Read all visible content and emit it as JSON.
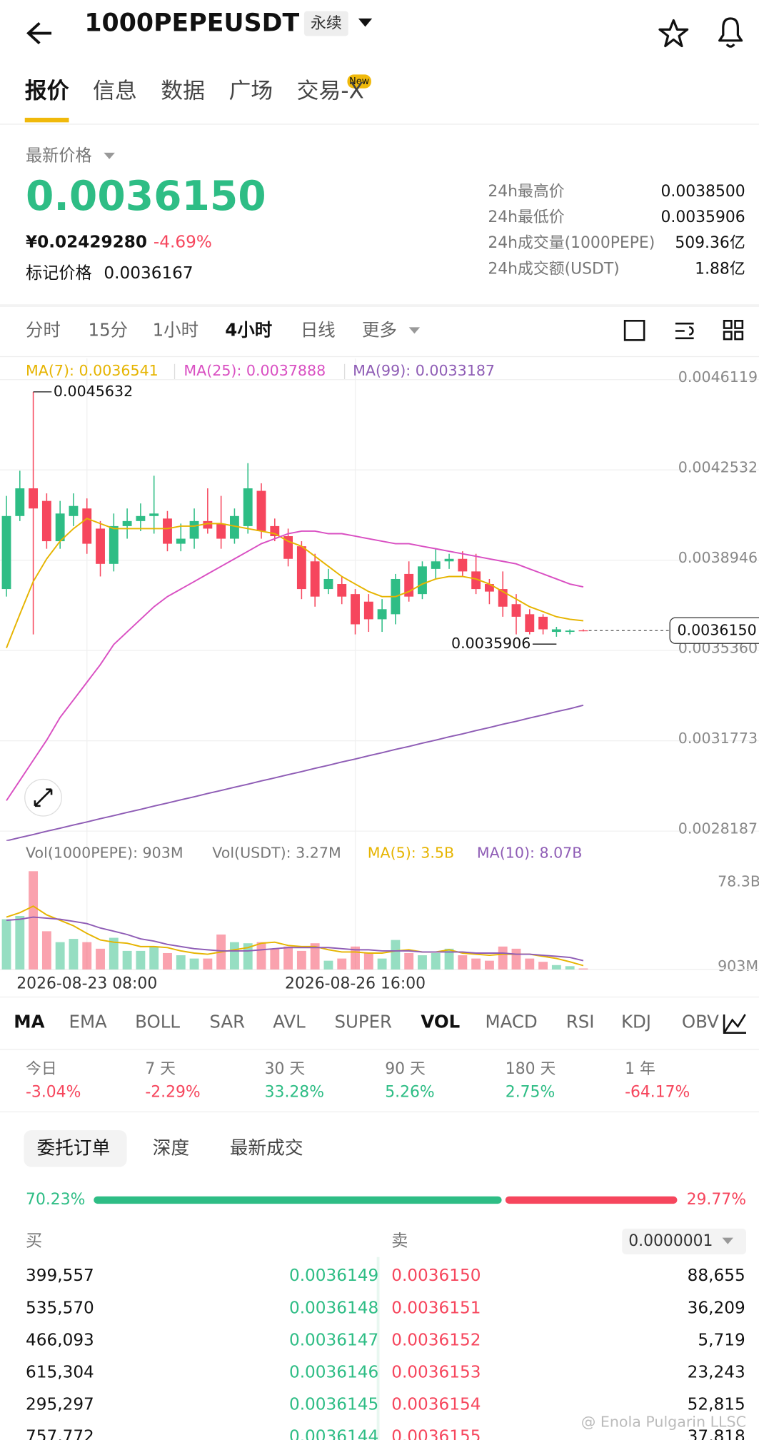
{
  "header": {
    "symbol": "1000PEPEUSDT",
    "contract_type": "永续"
  },
  "tabs": {
    "items": [
      "报价",
      "信息",
      "数据",
      "广场",
      "交易-X"
    ],
    "badge": "New"
  },
  "price": {
    "label": "最新价格",
    "last": "0.0036150",
    "cny": "¥0.02429280",
    "change": "-4.69%",
    "mark_label": "标记价格",
    "mark": "0.0036167"
  },
  "stats": [
    {
      "label": "24h最高价",
      "value": "0.0038500"
    },
    {
      "label": "24h最低价",
      "value": "0.0035906"
    },
    {
      "label": "24h成交量(1000PEPE)",
      "value": "509.36亿"
    },
    {
      "label": "24h成交额(USDT)",
      "value": "1.88亿"
    }
  ],
  "intervals": [
    "分时",
    "15分",
    "1小时",
    "4小时",
    "日线",
    "更多"
  ],
  "chart_data": {
    "type": "candlestick",
    "categories": [
      null,
      null,
      null,
      null,
      null,
      null,
      "2026-08-23 08:00",
      null,
      null,
      null,
      null,
      null,
      null,
      null,
      null,
      null,
      null,
      null,
      null,
      null,
      null,
      null,
      null,
      null,
      null,
      null,
      "2026-08-26 16:00",
      null,
      null,
      null,
      null,
      null,
      null,
      null,
      null,
      null,
      null,
      null,
      null,
      null,
      null,
      null,
      null,
      null
    ],
    "open": [
      0.00378,
      0.00407,
      0.00418,
      0.00413,
      0.00397,
      0.00407,
      0.0041,
      0.00402,
      0.00388,
      0.00403,
      0.00405,
      0.00407,
      0.00406,
      0.00396,
      0.00398,
      0.00405,
      0.00404,
      0.00398,
      0.00403,
      0.00417,
      0.00403,
      0.00399,
      0.00395,
      0.00389,
      0.00378,
      0.0038,
      0.00376,
      0.00373,
      0.00366,
      0.00368,
      0.00384,
      0.00376,
      0.00386,
      0.00389,
      0.0039,
      0.00385,
      0.0038,
      0.00378,
      0.00372,
      0.00368,
      0.00367,
      0.00361,
      0.00361,
      0.003616
    ],
    "high": [
      0.00415,
      0.00425,
      0.0045632,
      0.00416,
      0.00413,
      0.00416,
      0.00414,
      0.00405,
      0.00408,
      0.0041,
      0.00412,
      0.00423,
      0.00409,
      0.00404,
      0.0041,
      0.00418,
      0.00415,
      0.0041,
      0.00428,
      0.0042,
      0.00406,
      0.00402,
      0.00397,
      0.00392,
      0.00386,
      0.00383,
      0.00378,
      0.00376,
      0.00374,
      0.00384,
      0.00389,
      0.00389,
      0.00394,
      0.00392,
      0.00393,
      0.00392,
      0.00382,
      0.00385,
      0.00376,
      0.0037,
      0.00368,
      0.00363,
      0.00362,
      0.00362
    ],
    "low": [
      0.00375,
      0.00405,
      0.0036,
      0.00394,
      0.00394,
      0.00403,
      0.00392,
      0.00383,
      0.00385,
      0.00398,
      0.00401,
      0.004,
      0.00393,
      0.00393,
      0.00394,
      0.004,
      0.00394,
      0.00396,
      0.004,
      0.00398,
      0.00397,
      0.00387,
      0.00374,
      0.00371,
      0.00376,
      0.00372,
      0.0036,
      0.00361,
      0.00361,
      0.00364,
      0.00373,
      0.00374,
      0.00382,
      0.00386,
      0.00383,
      0.00376,
      0.00372,
      0.00367,
      0.0036,
      0.0036,
      0.0036,
      0.0035906,
      0.0036,
      0.003612
    ],
    "close": [
      0.00407,
      0.00418,
      0.0041,
      0.00397,
      0.00408,
      0.00411,
      0.00396,
      0.00388,
      0.00403,
      0.00405,
      0.00407,
      0.00408,
      0.00396,
      0.00398,
      0.00405,
      0.00402,
      0.00398,
      0.00407,
      0.00418,
      0.00401,
      0.00399,
      0.0039,
      0.00378,
      0.00375,
      0.00382,
      0.00375,
      0.00364,
      0.00366,
      0.0037,
      0.00382,
      0.00375,
      0.00387,
      0.00389,
      0.0039,
      0.00385,
      0.00378,
      0.00377,
      0.00371,
      0.00367,
      0.00361,
      0.00362,
      0.00362,
      0.003615,
      0.003615
    ],
    "series": [
      {
        "name": "MA(7): 0.0036541",
        "color": "#e6b400",
        "values": [
          0.003546,
          0.00368,
          0.00381,
          0.0039,
          0.00397,
          0.00402,
          0.00406,
          0.00404,
          0.00402,
          0.00402,
          0.00402,
          0.00402,
          0.00402,
          0.00403,
          0.00403,
          0.00404,
          0.00404,
          0.00403,
          0.00402,
          0.00401,
          0.004,
          0.00397,
          0.00395,
          0.00391,
          0.00387,
          0.00383,
          0.0038,
          0.00377,
          0.00375,
          0.00375,
          0.00377,
          0.0038,
          0.00382,
          0.00383,
          0.00383,
          0.00382,
          0.0038,
          0.00377,
          0.00374,
          0.00371,
          0.00369,
          0.00367,
          0.00366,
          0.0036541
        ]
      },
      {
        "name": "MA(25): 0.0037888",
        "color": "#d94fc2",
        "values": [
          0.00294,
          0.00302,
          0.0031,
          0.00318,
          0.00327,
          0.00334,
          0.00341,
          0.00348,
          0.00356,
          0.00361,
          0.00366,
          0.00371,
          0.00375,
          0.00378,
          0.00381,
          0.00384,
          0.00387,
          0.0039,
          0.00393,
          0.00396,
          0.00398,
          0.004,
          0.00401,
          0.00401,
          0.004,
          0.004,
          0.00399,
          0.00398,
          0.00397,
          0.00396,
          0.00396,
          0.00395,
          0.00394,
          0.00393,
          0.00392,
          0.00391,
          0.0039,
          0.00389,
          0.00388,
          0.00386,
          0.00384,
          0.00382,
          0.0038,
          0.0037888
        ]
      },
      {
        "name": "MA(99): 0.0033187",
        "color": "#8e5cb5",
        "values": [
          0.00278,
          0.002793,
          0.002805,
          0.002818,
          0.00283,
          0.002843,
          0.002855,
          0.002868,
          0.00288,
          0.002893,
          0.002905,
          0.002918,
          0.00293,
          0.002943,
          0.002955,
          0.002968,
          0.00298,
          0.002993,
          0.003005,
          0.003018,
          0.00303,
          0.003043,
          0.003055,
          0.003068,
          0.00308,
          0.003093,
          0.003105,
          0.003118,
          0.00313,
          0.003143,
          0.003155,
          0.003168,
          0.00318,
          0.003193,
          0.003205,
          0.003218,
          0.00323,
          0.003243,
          0.003255,
          0.003268,
          0.00328,
          0.003293,
          0.003305,
          0.0033187
        ]
      }
    ],
    "up_color": "#2ebd85",
    "down_color": "#f6465d",
    "ylim": [
      0.0027801,
      0.0046958
    ],
    "yticks": [
      0.0046119,
      0.0042532,
      0.0038946,
      {
        "value": 0.003536,
        "label": "0.0035360"
      },
      0.0031773,
      0.0028187
    ],
    "grid": true,
    "annotations": {
      "max": 0.0045632,
      "min": 0.0035906,
      "last": {
        "value": 0.003615,
        "label": "0.0036150"
      }
    },
    "volume": {
      "legend": [
        "Vol(1000PEPE): 903M",
        "Vol(USDT): 3.27M"
      ],
      "values": [
        46,
        49,
        90,
        35,
        25,
        28,
        25,
        19,
        29,
        17,
        17,
        21,
        15,
        13,
        10,
        10,
        32,
        25,
        24,
        25,
        19,
        21,
        17,
        24,
        8,
        10,
        21,
        15,
        10,
        27,
        15,
        13,
        15,
        19,
        13,
        10,
        8,
        21,
        19,
        10,
        7,
        4,
        3,
        0.903
      ],
      "series": [
        {
          "name": "MA(5): 3.5B",
          "color": "#e6b400",
          "values": [
            48,
            52,
            58,
            50,
            45,
            40,
            33,
            27,
            25,
            24,
            21,
            21,
            20,
            17,
            15,
            14,
            16,
            18,
            20,
            24,
            25,
            22,
            21,
            21,
            18,
            16,
            16,
            15,
            15,
            17,
            18,
            16,
            16,
            18,
            15,
            14,
            13,
            14,
            14,
            14,
            12,
            10,
            7,
            3.5
          ]
        },
        {
          "name": "MA(10): 8.07B",
          "color": "#8e5cb5",
          "values": [
            45,
            46,
            48,
            47,
            46,
            44,
            42,
            38,
            35,
            32,
            28,
            26,
            23,
            21,
            19,
            18,
            17,
            17,
            17,
            18,
            19,
            20,
            20,
            20,
            20,
            19,
            18,
            18,
            17,
            17,
            17,
            16,
            16,
            16,
            16,
            15,
            15,
            15,
            14,
            14,
            13,
            12,
            11,
            8.07
          ]
        }
      ],
      "ylim": [
        0,
        96.8
      ],
      "yticks": [
        {
          "value": 78.3,
          "label": "78.3B"
        },
        {
          "value": 0.903,
          "label": "903M"
        }
      ]
    }
  },
  "indicators": [
    "MA",
    "EMA",
    "BOLL",
    "SAR",
    "AVL",
    "SUPER",
    "VOL",
    "MACD",
    "RSI",
    "KDJ",
    "OBV"
  ],
  "performance": [
    {
      "period": "今日",
      "change": "-3.04%"
    },
    {
      "period": "7 天",
      "change": "-2.29%"
    },
    {
      "period": "30 天",
      "change": "33.28%"
    },
    {
      "period": "90 天",
      "change": "5.26%"
    },
    {
      "period": "180 天",
      "change": "2.75%"
    },
    {
      "period": "1 年",
      "change": "-64.17%"
    }
  ],
  "order_book": {
    "tabs": [
      "委托订单",
      "深度",
      "最新成交"
    ],
    "ratio": {
      "values": [
        70.23,
        29.77
      ],
      "value_labels": [
        "70.23%",
        "29.77%"
      ]
    },
    "bid_header": "买",
    "ask_header": "卖",
    "precision": "0.0000001",
    "rows": [
      {
        "bid_qty": "399,557",
        "bid_price": "0.0036149",
        "ask_price": "0.0036150",
        "ask_qty": "88,655"
      },
      {
        "bid_qty": "535,570",
        "bid_price": "0.0036148",
        "ask_price": "0.0036151",
        "ask_qty": "36,209"
      },
      {
        "bid_qty": "466,093",
        "bid_price": "0.0036147",
        "ask_price": "0.0036152",
        "ask_qty": "5,719"
      },
      {
        "bid_qty": "615,304",
        "bid_price": "0.0036146",
        "ask_price": "0.0036153",
        "ask_qty": "23,243"
      },
      {
        "bid_qty": "295,297",
        "bid_price": "0.0036145",
        "ask_price": "0.0036154",
        "ask_qty": "52,815"
      },
      {
        "bid_qty": "757,772",
        "bid_price": "0.0036144",
        "ask_price": "0.0036155",
        "ask_qty": "37,818"
      }
    ]
  },
  "watermark": "@ Enola Pulgarin LLSC"
}
